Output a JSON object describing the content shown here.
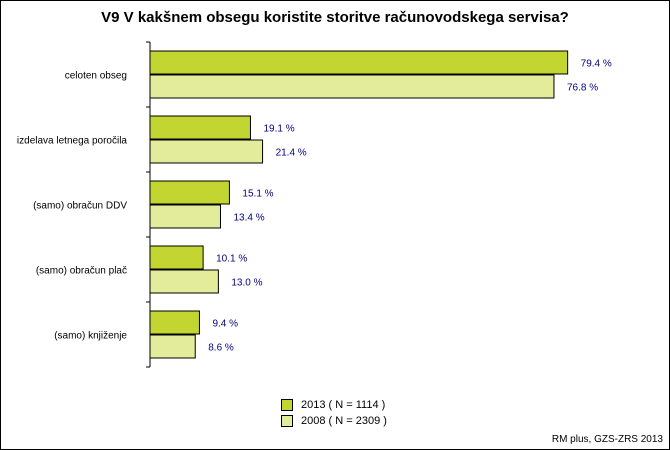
{
  "chart_data": {
    "type": "bar",
    "orientation": "horizontal",
    "title": "V9 V kakšnem obsegu koristite storitve računovodskega servisa?",
    "categories": [
      "celoten obseg",
      "izdelava letnega poročila",
      "(samo) obračun DDV",
      "(samo) obračun plač",
      "(samo) knjiženje"
    ],
    "series": [
      {
        "name": "2013 ( N = 1114 )",
        "values": [
          79.4,
          19.1,
          15.1,
          10.1,
          9.4
        ],
        "labels": [
          "79.4 %",
          "19.1 %",
          "15.1 %",
          "10.1 %",
          "9.4 %"
        ],
        "color": "#c3d530"
      },
      {
        "name": "2008 ( N = 2309 )",
        "values": [
          76.8,
          21.4,
          13.4,
          13.0,
          8.6
        ],
        "labels": [
          "76.8 %",
          "21.4 %",
          "13.4 %",
          "13.0 %",
          "8.6 %"
        ],
        "color": "#e3ec9b"
      }
    ],
    "xlim": [
      0,
      100
    ],
    "value_label_color": "#000080",
    "legend_position": "bottom",
    "grid": false,
    "source": "RM plus, GZS-ZRS 2013"
  }
}
